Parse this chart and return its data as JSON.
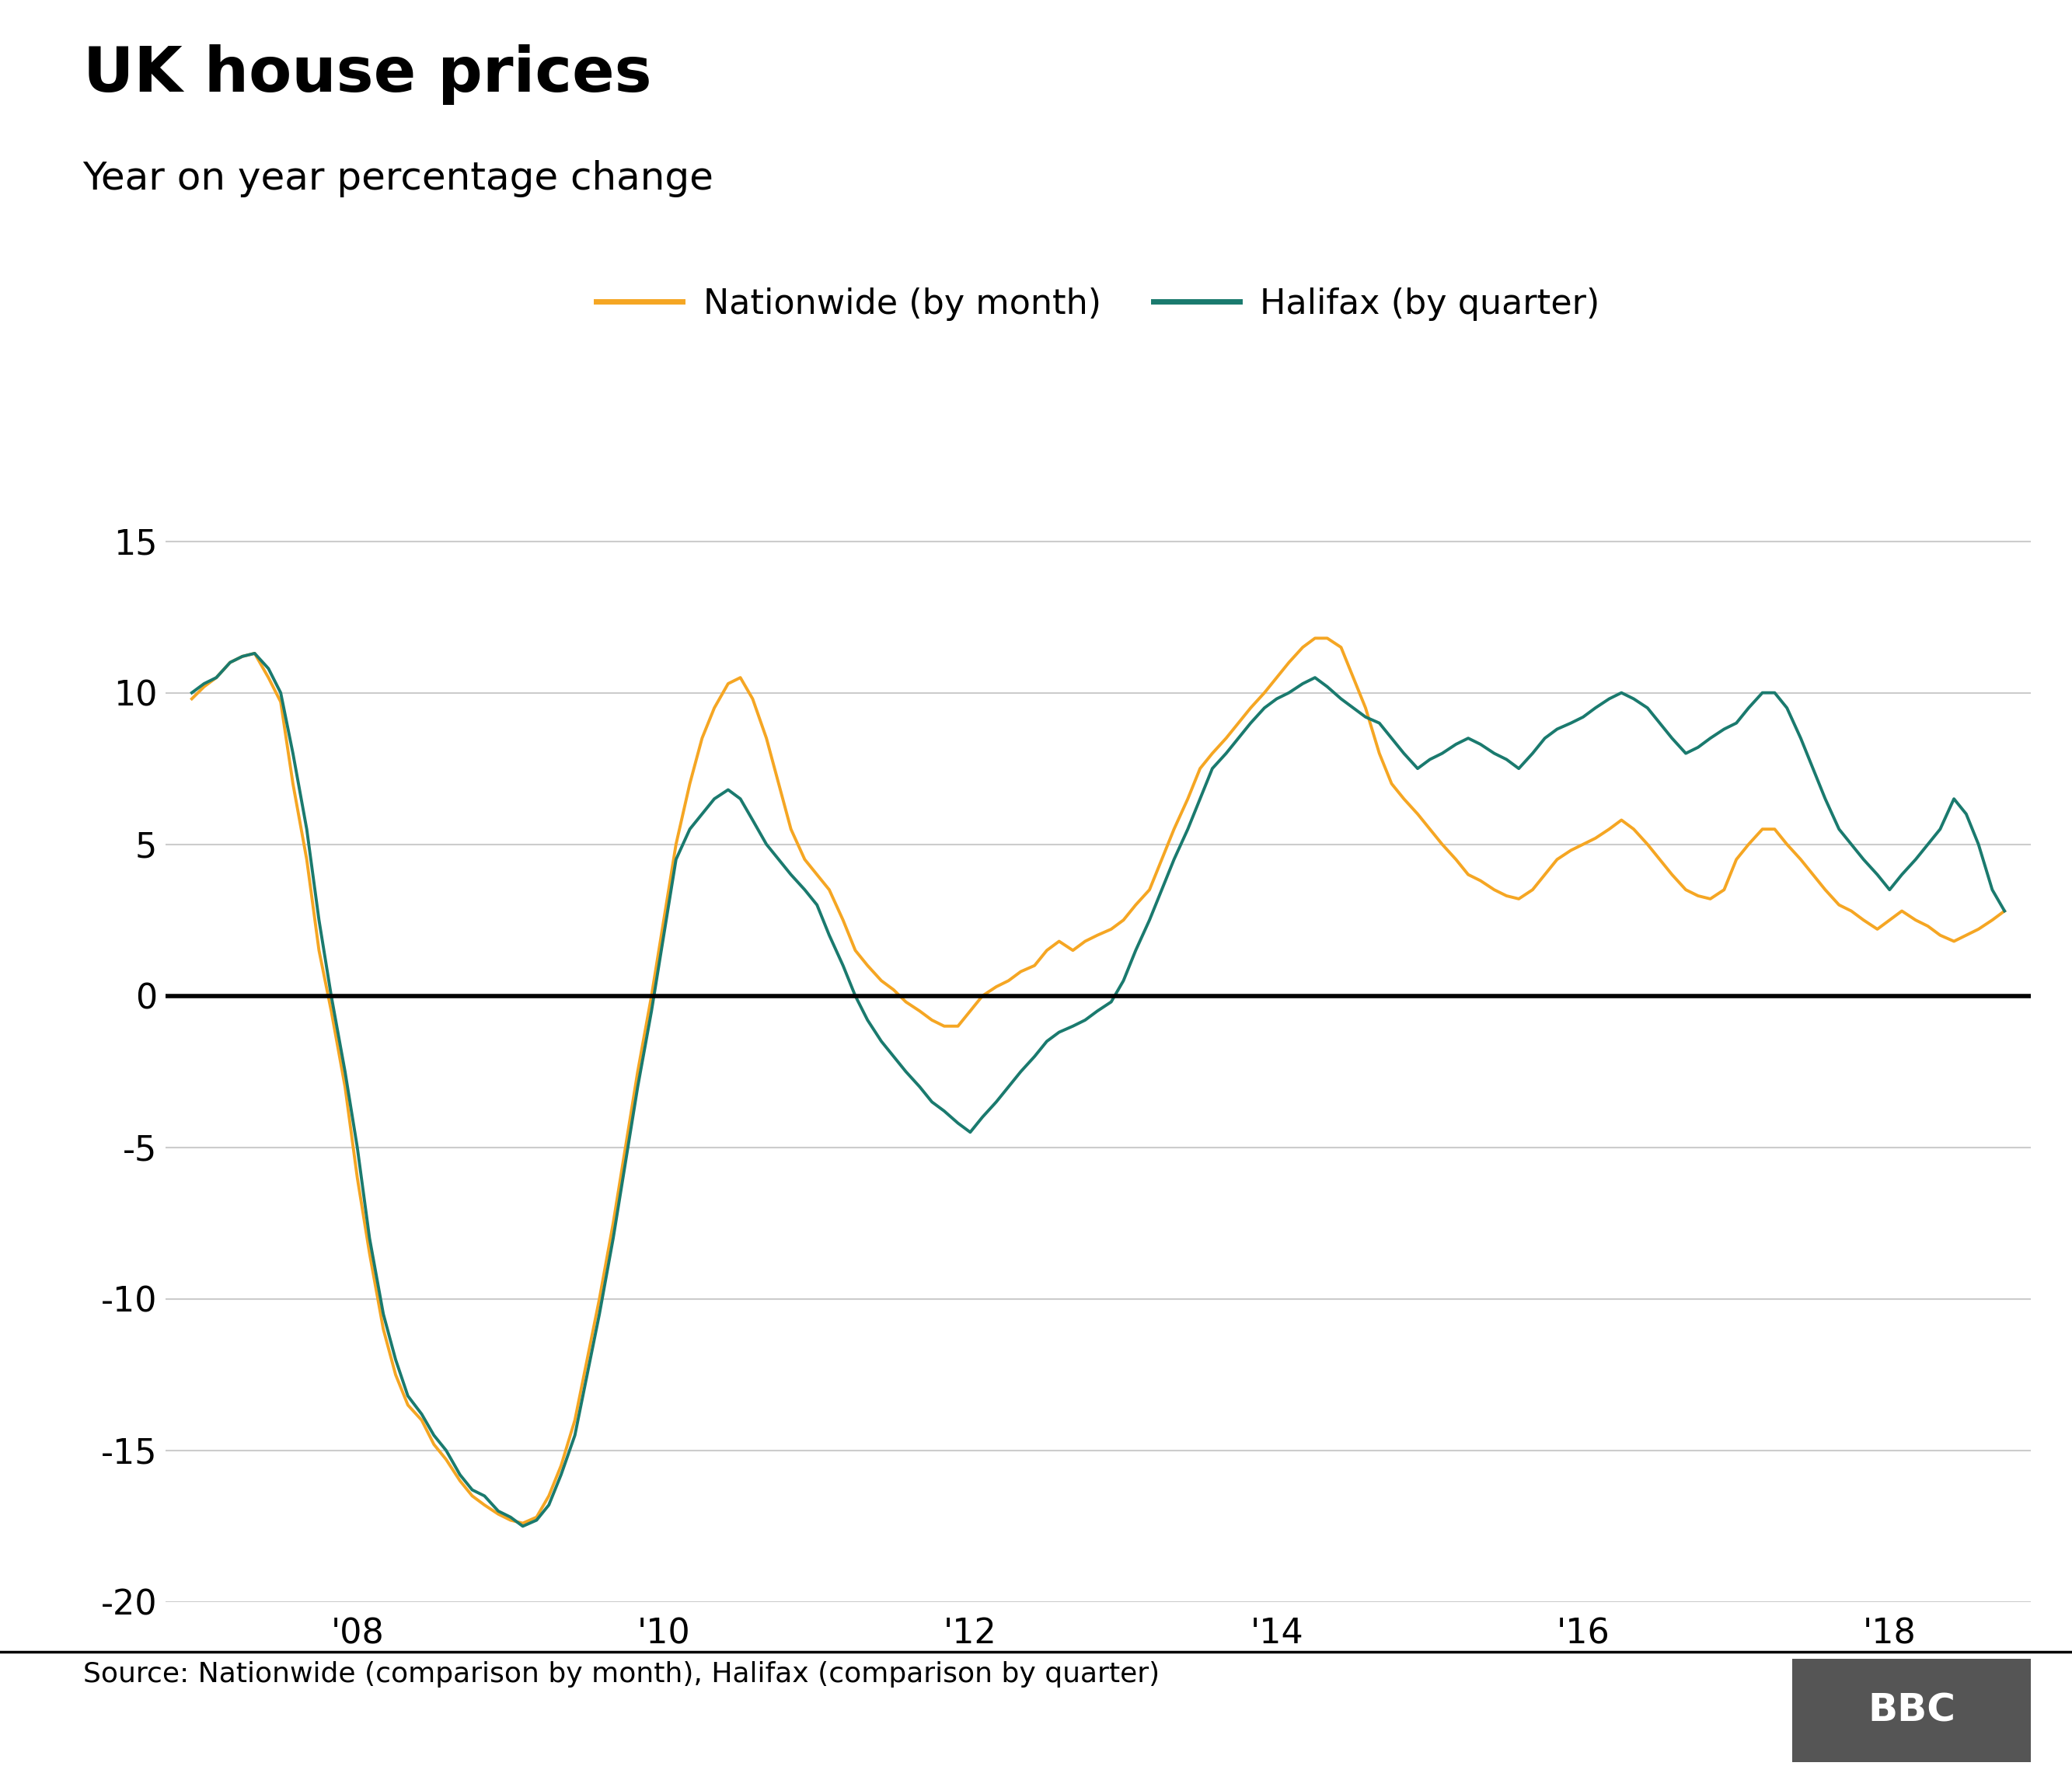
{
  "title": "UK house prices",
  "subtitle": "Year on year percentage change",
  "source_text": "Source: Nationwide (comparison by month), Halifax (comparison by quarter)",
  "nationwide_color": "#F5A623",
  "halifax_color": "#1A7A6E",
  "zero_line_color": "#000000",
  "grid_color": "#CCCCCC",
  "background_color": "#FFFFFF",
  "ylim": [
    -20,
    17
  ],
  "yticks": [
    -20,
    -15,
    -10,
    -5,
    0,
    5,
    10,
    15
  ],
  "xtick_labels": [
    "'08",
    "'10",
    "'12",
    "'14",
    "'16",
    "'18"
  ],
  "title_fontsize": 58,
  "subtitle_fontsize": 36,
  "legend_fontsize": 32,
  "tick_fontsize": 32,
  "source_fontsize": 26,
  "nationwide_x": [
    2006.92,
    2007.0,
    2007.08,
    2007.17,
    2007.25,
    2007.33,
    2007.42,
    2007.5,
    2007.58,
    2007.67,
    2007.75,
    2007.83,
    2007.92,
    2008.0,
    2008.08,
    2008.17,
    2008.25,
    2008.33,
    2008.42,
    2008.5,
    2008.58,
    2008.67,
    2008.75,
    2008.83,
    2008.92,
    2009.0,
    2009.08,
    2009.17,
    2009.25,
    2009.33,
    2009.42,
    2009.5,
    2009.58,
    2009.67,
    2009.75,
    2009.83,
    2009.92,
    2010.0,
    2010.08,
    2010.17,
    2010.25,
    2010.33,
    2010.42,
    2010.5,
    2010.58,
    2010.67,
    2010.75,
    2010.83,
    2010.92,
    2011.0,
    2011.08,
    2011.17,
    2011.25,
    2011.33,
    2011.42,
    2011.5,
    2011.58,
    2011.67,
    2011.75,
    2011.83,
    2011.92,
    2012.0,
    2012.08,
    2012.17,
    2012.25,
    2012.33,
    2012.42,
    2012.5,
    2012.58,
    2012.67,
    2012.75,
    2012.83,
    2012.92,
    2013.0,
    2013.08,
    2013.17,
    2013.25,
    2013.33,
    2013.42,
    2013.5,
    2013.58,
    2013.67,
    2013.75,
    2013.83,
    2013.92,
    2014.0,
    2014.08,
    2014.17,
    2014.25,
    2014.33,
    2014.42,
    2014.5,
    2014.58,
    2014.67,
    2014.75,
    2014.83,
    2014.92,
    2015.0,
    2015.08,
    2015.17,
    2015.25,
    2015.33,
    2015.42,
    2015.5,
    2015.58,
    2015.67,
    2015.75,
    2015.83,
    2015.92,
    2016.0,
    2016.08,
    2016.17,
    2016.25,
    2016.33,
    2016.42,
    2016.5,
    2016.58,
    2016.67,
    2016.75,
    2016.83,
    2016.92,
    2017.0,
    2017.08,
    2017.17,
    2017.25,
    2017.33,
    2017.42,
    2017.5,
    2017.58,
    2017.67,
    2017.75,
    2017.83,
    2017.92,
    2018.0,
    2018.08,
    2018.17,
    2018.25,
    2018.33,
    2018.42,
    2018.5,
    2018.58,
    2018.67,
    2018.75
  ],
  "nationwide_y": [
    9.8,
    10.2,
    10.5,
    11.0,
    11.2,
    11.3,
    10.5,
    9.7,
    7.0,
    4.5,
    1.5,
    -0.5,
    -3.0,
    -6.0,
    -8.5,
    -11.0,
    -12.5,
    -13.5,
    -14.0,
    -14.8,
    -15.3,
    -16.0,
    -16.5,
    -16.8,
    -17.1,
    -17.3,
    -17.4,
    -17.2,
    -16.5,
    -15.5,
    -14.0,
    -12.0,
    -10.0,
    -7.5,
    -5.0,
    -2.5,
    0.0,
    2.5,
    5.0,
    7.0,
    8.5,
    9.5,
    10.3,
    10.5,
    9.8,
    8.5,
    7.0,
    5.5,
    4.5,
    4.0,
    3.5,
    2.5,
    1.5,
    1.0,
    0.5,
    0.2,
    -0.2,
    -0.5,
    -0.8,
    -1.0,
    -1.0,
    -0.5,
    0.0,
    0.3,
    0.5,
    0.8,
    1.0,
    1.5,
    1.8,
    1.5,
    1.8,
    2.0,
    2.2,
    2.5,
    3.0,
    3.5,
    4.5,
    5.5,
    6.5,
    7.5,
    8.0,
    8.5,
    9.0,
    9.5,
    10.0,
    10.5,
    11.0,
    11.5,
    11.8,
    11.8,
    11.5,
    10.5,
    9.5,
    8.0,
    7.0,
    6.5,
    6.0,
    5.5,
    5.0,
    4.5,
    4.0,
    3.8,
    3.5,
    3.3,
    3.2,
    3.5,
    4.0,
    4.5,
    4.8,
    5.0,
    5.2,
    5.5,
    5.8,
    5.5,
    5.0,
    4.5,
    4.0,
    3.5,
    3.3,
    3.2,
    3.5,
    4.5,
    5.0,
    5.5,
    5.5,
    5.0,
    4.5,
    4.0,
    3.5,
    3.0,
    2.8,
    2.5,
    2.2,
    2.5,
    2.8,
    2.5,
    2.3,
    2.0,
    1.8,
    2.0,
    2.2,
    2.5,
    2.8
  ],
  "halifax_x": [
    2006.92,
    2007.0,
    2007.08,
    2007.17,
    2007.25,
    2007.33,
    2007.42,
    2007.5,
    2007.58,
    2007.67,
    2007.75,
    2007.83,
    2007.92,
    2008.0,
    2008.08,
    2008.17,
    2008.25,
    2008.33,
    2008.42,
    2008.5,
    2008.58,
    2008.67,
    2008.75,
    2008.83,
    2008.92,
    2009.0,
    2009.08,
    2009.17,
    2009.25,
    2009.33,
    2009.42,
    2009.5,
    2009.58,
    2009.67,
    2009.75,
    2009.83,
    2009.92,
    2010.0,
    2010.08,
    2010.17,
    2010.25,
    2010.33,
    2010.42,
    2010.5,
    2010.58,
    2010.67,
    2010.75,
    2010.83,
    2010.92,
    2011.0,
    2011.08,
    2011.17,
    2011.25,
    2011.33,
    2011.42,
    2011.5,
    2011.58,
    2011.67,
    2011.75,
    2011.83,
    2011.92,
    2012.0,
    2012.08,
    2012.17,
    2012.25,
    2012.33,
    2012.42,
    2012.5,
    2012.58,
    2012.67,
    2012.75,
    2012.83,
    2012.92,
    2013.0,
    2013.08,
    2013.17,
    2013.25,
    2013.33,
    2013.42,
    2013.5,
    2013.58,
    2013.67,
    2013.75,
    2013.83,
    2013.92,
    2014.0,
    2014.08,
    2014.17,
    2014.25,
    2014.33,
    2014.42,
    2014.5,
    2014.58,
    2014.67,
    2014.75,
    2014.83,
    2014.92,
    2015.0,
    2015.08,
    2015.17,
    2015.25,
    2015.33,
    2015.42,
    2015.5,
    2015.58,
    2015.67,
    2015.75,
    2015.83,
    2015.92,
    2016.0,
    2016.08,
    2016.17,
    2016.25,
    2016.33,
    2016.42,
    2016.5,
    2016.58,
    2016.67,
    2016.75,
    2016.83,
    2016.92,
    2017.0,
    2017.08,
    2017.17,
    2017.25,
    2017.33,
    2017.42,
    2017.5,
    2017.58,
    2017.67,
    2017.75,
    2017.83,
    2017.92,
    2018.0,
    2018.08,
    2018.17,
    2018.25,
    2018.33,
    2018.42,
    2018.5,
    2018.58,
    2018.67,
    2018.75
  ],
  "halifax_y": [
    10.0,
    10.3,
    10.5,
    11.0,
    11.2,
    11.3,
    10.8,
    10.0,
    8.0,
    5.5,
    2.5,
    0.0,
    -2.5,
    -5.0,
    -8.0,
    -10.5,
    -12.0,
    -13.2,
    -13.8,
    -14.5,
    -15.0,
    -15.8,
    -16.3,
    -16.5,
    -17.0,
    -17.2,
    -17.5,
    -17.3,
    -16.8,
    -15.8,
    -14.5,
    -12.5,
    -10.5,
    -8.0,
    -5.5,
    -3.0,
    -0.5,
    2.0,
    4.5,
    5.5,
    6.0,
    6.5,
    6.8,
    6.5,
    5.8,
    5.0,
    4.5,
    4.0,
    3.5,
    3.0,
    2.0,
    1.0,
    0.0,
    -0.8,
    -1.5,
    -2.0,
    -2.5,
    -3.0,
    -3.5,
    -3.8,
    -4.2,
    -4.5,
    -4.0,
    -3.5,
    -3.0,
    -2.5,
    -2.0,
    -1.5,
    -1.2,
    -1.0,
    -0.8,
    -0.5,
    -0.2,
    0.5,
    1.5,
    2.5,
    3.5,
    4.5,
    5.5,
    6.5,
    7.5,
    8.0,
    8.5,
    9.0,
    9.5,
    9.8,
    10.0,
    10.3,
    10.5,
    10.2,
    9.8,
    9.5,
    9.2,
    9.0,
    8.5,
    8.0,
    7.5,
    7.8,
    8.0,
    8.3,
    8.5,
    8.3,
    8.0,
    7.8,
    7.5,
    8.0,
    8.5,
    8.8,
    9.0,
    9.2,
    9.5,
    9.8,
    10.0,
    9.8,
    9.5,
    9.0,
    8.5,
    8.0,
    8.2,
    8.5,
    8.8,
    9.0,
    9.5,
    10.0,
    10.0,
    9.5,
    8.5,
    7.5,
    6.5,
    5.5,
    5.0,
    4.5,
    4.0,
    3.5,
    4.0,
    4.5,
    5.0,
    5.5,
    6.5,
    6.0,
    5.0,
    3.5,
    2.8
  ]
}
